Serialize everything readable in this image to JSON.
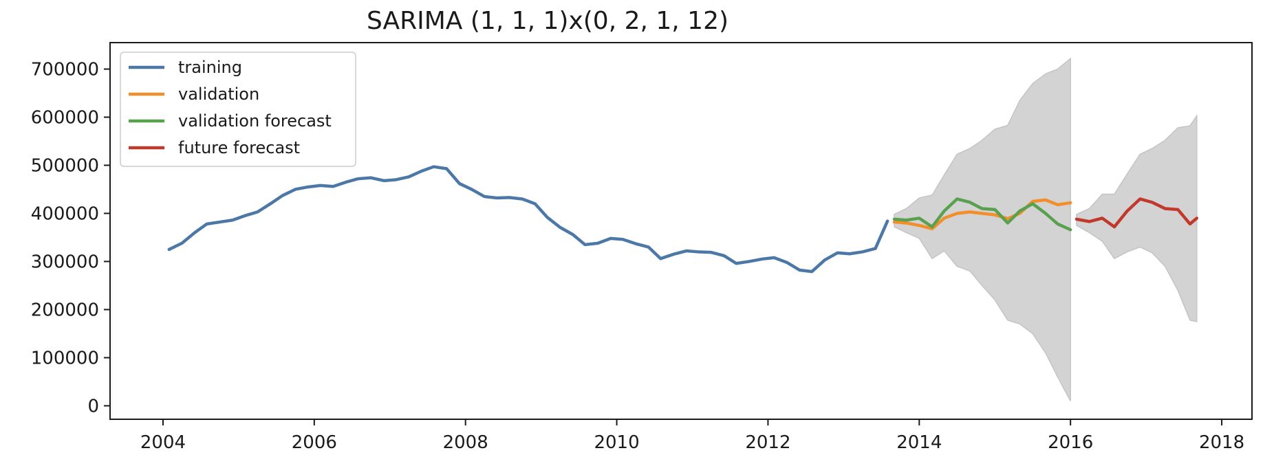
{
  "chart_data": {
    "type": "line",
    "title": "SARIMA (1, 1, 1)x(0, 2, 1, 12)",
    "xlabel": "",
    "ylabel": "",
    "xlim": [
      2003.3,
      2018.4
    ],
    "ylim": [
      -28000,
      755000
    ],
    "x_ticks": [
      2004,
      2006,
      2008,
      2010,
      2012,
      2014,
      2016,
      2018
    ],
    "x_tick_labels": [
      "2004",
      "2006",
      "2008",
      "2010",
      "2012",
      "2014",
      "2016",
      "2018"
    ],
    "y_ticks": [
      0,
      100000,
      200000,
      300000,
      400000,
      500000,
      600000,
      700000
    ],
    "y_tick_labels": [
      "0",
      "100000",
      "200000",
      "300000",
      "400000",
      "500000",
      "600000",
      "700000"
    ],
    "grid": false,
    "legend_position": "top-left",
    "series": [
      {
        "name": "training",
        "color": "#4c78a8",
        "x": [
          2004.08,
          2004.25,
          2004.42,
          2004.58,
          2004.75,
          2004.92,
          2005.08,
          2005.25,
          2005.42,
          2005.58,
          2005.75,
          2005.92,
          2006.08,
          2006.25,
          2006.42,
          2006.58,
          2006.75,
          2006.92,
          2007.08,
          2007.25,
          2007.42,
          2007.58,
          2007.75,
          2007.92,
          2008.08,
          2008.25,
          2008.42,
          2008.58,
          2008.75,
          2008.92,
          2009.08,
          2009.25,
          2009.42,
          2009.58,
          2009.75,
          2009.92,
          2010.08,
          2010.25,
          2010.42,
          2010.58,
          2010.75,
          2010.92,
          2011.08,
          2011.25,
          2011.42,
          2011.58,
          2011.75,
          2011.92,
          2012.08,
          2012.25,
          2012.42,
          2012.58,
          2012.75,
          2012.92,
          2013.08,
          2013.25,
          2013.42,
          2013.58
        ],
        "y": [
          325000,
          338000,
          360000,
          378000,
          382000,
          386000,
          395000,
          403000,
          420000,
          437000,
          450000,
          455000,
          458000,
          456000,
          465000,
          472000,
          474000,
          468000,
          470000,
          476000,
          488000,
          497000,
          493000,
          462000,
          450000,
          435000,
          432000,
          433000,
          430000,
          420000,
          392000,
          371000,
          356000,
          335000,
          338000,
          348000,
          346000,
          337000,
          330000,
          306000,
          315000,
          322000,
          320000,
          319000,
          312000,
          296000,
          300000,
          305000,
          308000,
          298000,
          282000,
          279000,
          303000,
          318000,
          316000,
          320000,
          327000,
          384000
        ]
      },
      {
        "name": "validation",
        "color": "#f28e2b",
        "x": [
          2013.67,
          2013.83,
          2014.0,
          2014.17,
          2014.33,
          2014.5,
          2014.67,
          2014.83,
          2015.0,
          2015.17,
          2015.33,
          2015.5,
          2015.67,
          2015.83,
          2016.0
        ],
        "y": [
          382000,
          380000,
          375000,
          368000,
          390000,
          400000,
          403000,
          400000,
          397000,
          389000,
          400000,
          425000,
          428000,
          418000,
          422000
        ]
      },
      {
        "name": "validation forecast",
        "color": "#59a14f",
        "x": [
          2013.67,
          2013.83,
          2014.0,
          2014.17,
          2014.33,
          2014.5,
          2014.67,
          2014.83,
          2015.0,
          2015.17,
          2015.33,
          2015.5,
          2015.67,
          2015.83,
          2016.0
        ],
        "y": [
          388000,
          386000,
          390000,
          372000,
          405000,
          430000,
          423000,
          410000,
          408000,
          380000,
          405000,
          420000,
          400000,
          378000,
          366000
        ]
      },
      {
        "name": "future forecast",
        "color": "#c0392b",
        "x": [
          2016.08,
          2016.25,
          2016.42,
          2016.58,
          2016.75,
          2016.92,
          2017.08,
          2017.25,
          2017.42,
          2017.58,
          2017.67
        ],
        "y": [
          388000,
          383000,
          390000,
          372000,
          405000,
          430000,
          423000,
          410000,
          408000,
          378000,
          390000
        ]
      }
    ],
    "confidence_bands": [
      {
        "x": [
          2013.67,
          2013.83,
          2014.0,
          2014.17,
          2014.33,
          2014.5,
          2014.67,
          2014.83,
          2015.0,
          2015.17,
          2015.33,
          2015.5,
          2015.67,
          2015.83,
          2016.0
        ],
        "upper": [
          398000,
          410000,
          432000,
          438000,
          480000,
          523000,
          535000,
          552000,
          575000,
          583000,
          635000,
          670000,
          690000,
          700000,
          722000
        ],
        "lower": [
          372000,
          360000,
          348000,
          306000,
          322000,
          290000,
          280000,
          250000,
          220000,
          178000,
          170000,
          150000,
          110000,
          60000,
          10000
        ]
      },
      {
        "x": [
          2016.08,
          2016.25,
          2016.42,
          2016.58,
          2016.75,
          2016.92,
          2017.08,
          2017.25,
          2017.42,
          2017.58,
          2017.67
        ],
        "upper": [
          398000,
          410000,
          440000,
          440000,
          482000,
          523000,
          535000,
          552000,
          578000,
          582000,
          603000
        ],
        "lower": [
          375000,
          360000,
          342000,
          306000,
          320000,
          330000,
          318000,
          290000,
          240000,
          178000,
          175000
        ]
      }
    ],
    "band_color": "#d3d3d3"
  }
}
